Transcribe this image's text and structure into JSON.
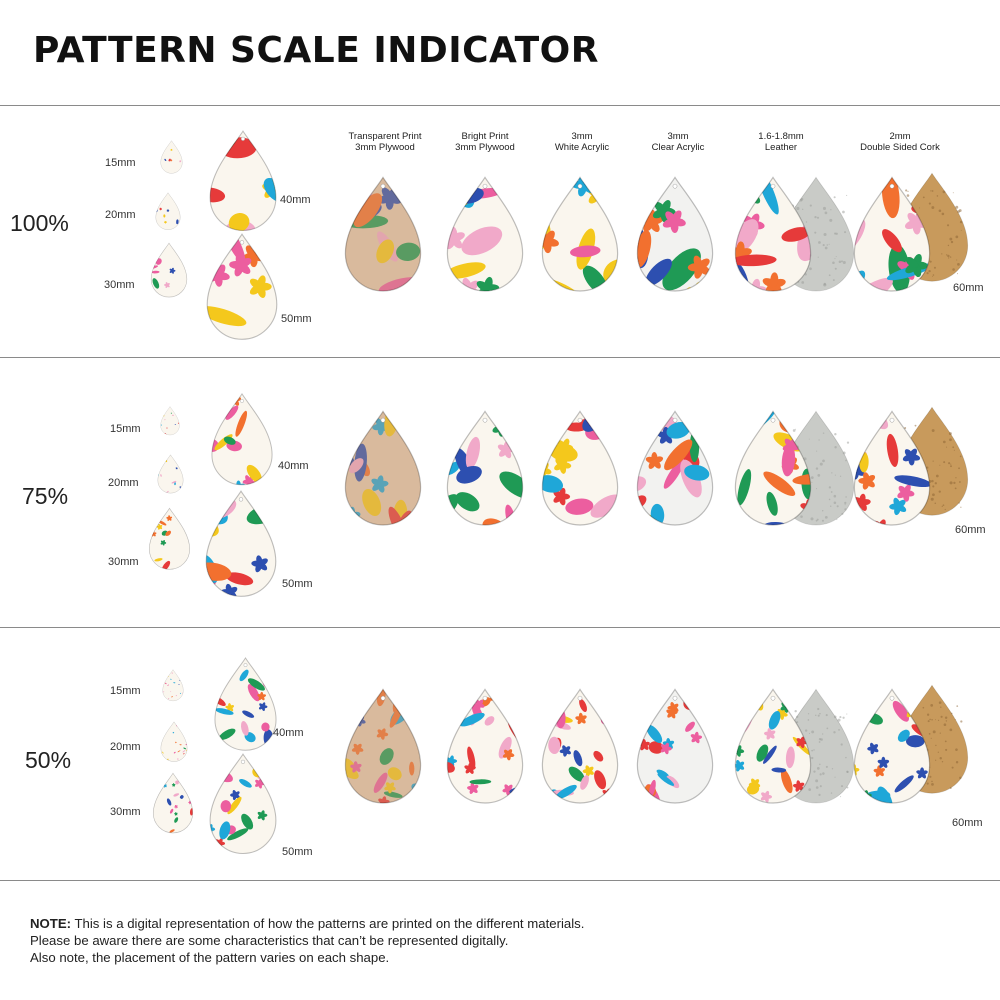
{
  "title": "PATTERN SCALE INDICATOR",
  "materials": [
    {
      "line1": "Transparent Print",
      "line2": "3mm Plywood"
    },
    {
      "line1": "Bright Print",
      "line2": "3mm Plywood"
    },
    {
      "line1": "3mm",
      "line2": "White Acrylic"
    },
    {
      "line1": "3mm",
      "line2": "Clear Acrylic"
    },
    {
      "line1": "1.6-1.8mm",
      "line2": "Leather"
    },
    {
      "line1": "2mm",
      "line2": "Double Sided Cork"
    }
  ],
  "sections": [
    {
      "scale": "100%",
      "sizes": {
        "s15": "15mm",
        "s20": "20mm",
        "s30": "30mm",
        "s40": "40mm",
        "s50": "50mm",
        "s60": "60mm"
      }
    },
    {
      "scale": "75%",
      "sizes": {
        "s15": "15mm",
        "s20": "20mm",
        "s30": "30mm",
        "s40": "40mm",
        "s50": "50mm",
        "s60": "60mm"
      }
    },
    {
      "scale": "50%",
      "sizes": {
        "s15": "15mm",
        "s20": "20mm",
        "s30": "30mm",
        "s40": "40mm",
        "s50": "50mm",
        "s60": "60mm"
      }
    }
  ],
  "note": {
    "label": "NOTE:",
    "line1": " This is a digital representation of how the patterns are printed on the different materials.",
    "line2": "Please be aware there are some characteristics that can’t be represented digitally.",
    "line3": "Also note, the placement of the pattern varies on each shape."
  },
  "colors": {
    "pink": "#ec5e9f",
    "green": "#1f9a55",
    "blue": "#2d4fb0",
    "yellow": "#f4c81c",
    "orange": "#f2702f",
    "lightpink": "#f1a9c9",
    "cyan": "#1fa7d8",
    "red": "#e63a3a",
    "cork": "#c89a5c",
    "leather": "#c9cbc7",
    "rule": "#8a8a8a"
  }
}
